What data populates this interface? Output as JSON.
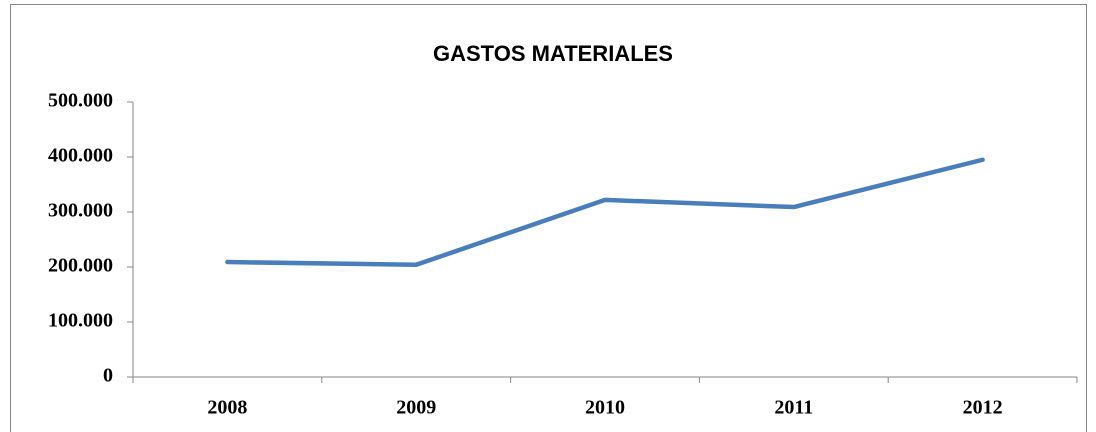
{
  "chart_data": {
    "type": "line",
    "title": "GASTOS MATERIALES",
    "categories": [
      "2008",
      "2009",
      "2010",
      "2011",
      "2012"
    ],
    "series": [
      {
        "name": "GASTOS MATERIALES",
        "color": "#4a7ebb",
        "values": [
          209000,
          204000,
          322000,
          309000,
          395000
        ]
      }
    ],
    "ylim": [
      0,
      500000
    ],
    "yticks": [
      0,
      {
        "value": 100000,
        "label": "100.000"
      },
      {
        "value": 200000,
        "label": "200.000"
      },
      {
        "value": 300000,
        "label": "300.000"
      },
      {
        "value": 400000,
        "label": "400.000"
      },
      {
        "value": 500000,
        "label": "500.000"
      }
    ],
    "grid": false
  }
}
